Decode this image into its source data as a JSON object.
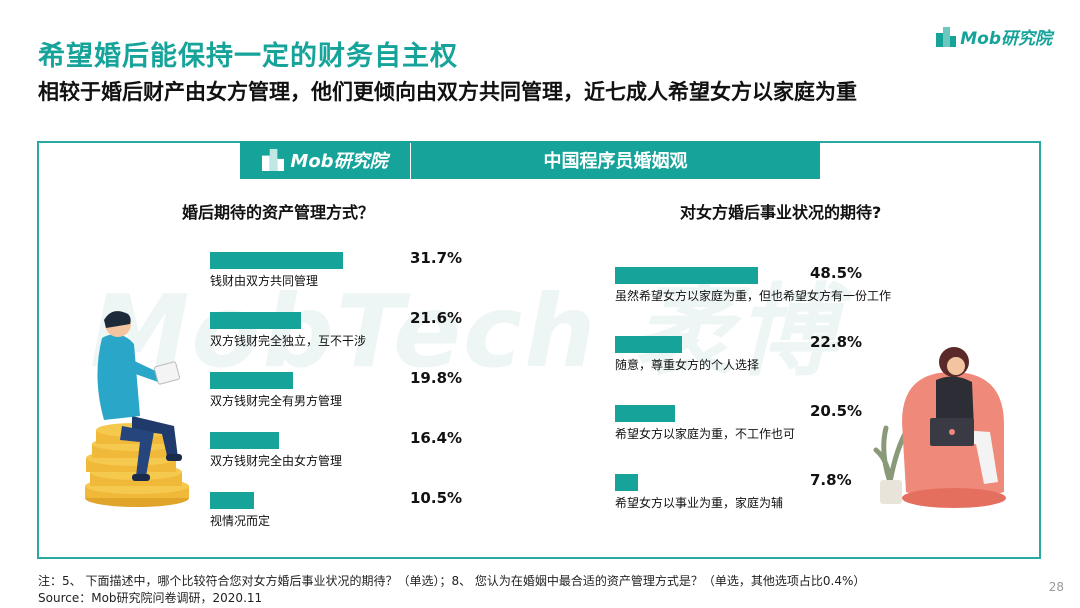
{
  "header": {
    "title": "希望婚后能保持一定的财务自主权",
    "subtitle": "相较于婚后财产由女方管理，他们更倾向由双方共同管理，近七成人希望女方以家庭为重",
    "logo_text": "Mob研究院"
  },
  "banner": {
    "logo_text": "Mob研究院",
    "title": "中国程序员婚姻观"
  },
  "watermark": "MobTech 袤博",
  "chart_data": [
    {
      "type": "bar",
      "title": "婚后期待的资产管理方式？",
      "categories": [
        "钱财由双方共同管理",
        "双方钱财完全独立，互不干涉",
        "双方钱财完全有男方管理",
        "双方钱财完全由女方管理",
        "视情况而定"
      ],
      "values": [
        31.7,
        21.6,
        19.8,
        16.4,
        10.5
      ],
      "value_labels": [
        "31.7%",
        "21.6%",
        "19.8%",
        "16.4%",
        "10.5%"
      ],
      "bar_color": "#15a39a"
    },
    {
      "type": "bar",
      "title": "对女方婚后事业状况的期待?",
      "categories": [
        "虽然希望女方以家庭为重，但也希望女方有一份工作",
        "随意，尊重女方的个人选择",
        "希望女方以家庭为重，不工作也可",
        "希望女方以事业为重，家庭为辅"
      ],
      "values": [
        48.5,
        22.8,
        20.5,
        7.8
      ],
      "value_labels": [
        "48.5%",
        "22.8%",
        "20.5%",
        "7.8%"
      ],
      "bar_color": "#15a39a"
    }
  ],
  "footer": {
    "note": "注：5、 下面描述中，哪个比较符合您对女方婚后事业状况的期待？（单选）；8、 您认为在婚姻中最合适的资产管理方式是？（单选，其他选项占比0.4%）",
    "source": "Source：Mob研究院问卷调研，2020.11",
    "page_number": "28"
  },
  "colors": {
    "accent": "#15a39a"
  }
}
